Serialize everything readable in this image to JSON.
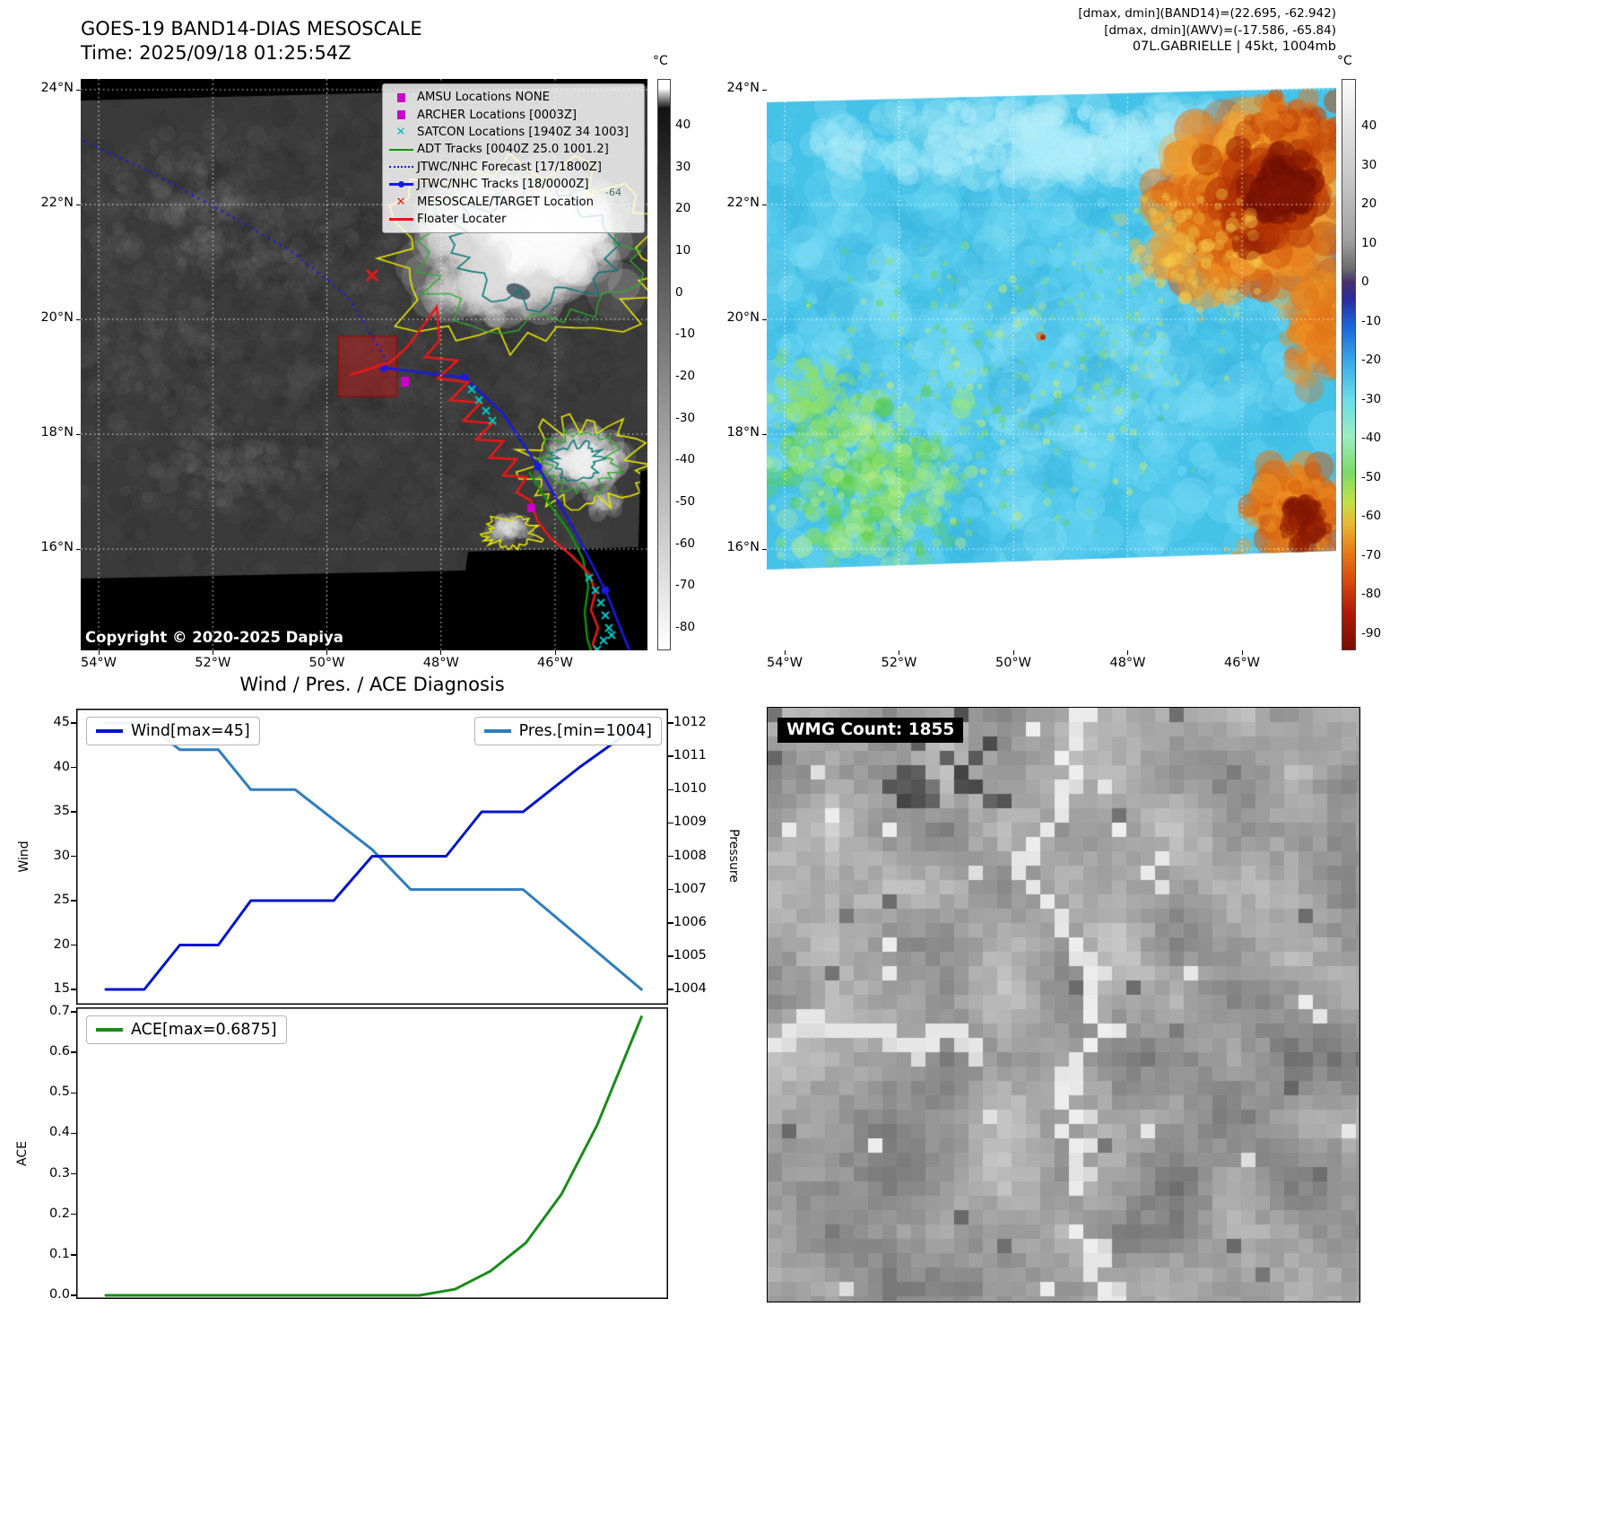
{
  "band14": {
    "title": "GOES-19 BAND14-DIAS MESOSCALE",
    "subtitle": "Time: 2025/09/18 01:25:54Z",
    "copyright": "Copyright © 2020-2025 Dapiya",
    "colorbar_unit": "°C",
    "colorbar_ticks": [
      "40",
      "30",
      "20",
      "10",
      "0",
      "-10",
      "-20",
      "-30",
      "-40",
      "-50",
      "-60",
      "-70",
      "-80"
    ],
    "lat_ticks": [
      "24°N",
      "22°N",
      "20°N",
      "18°N",
      "16°N"
    ],
    "lon_ticks": [
      "54°W",
      "52°W",
      "50°W",
      "48°W",
      "46°W"
    ],
    "contour_labels": [
      "-64",
      "-64"
    ],
    "legend": [
      {
        "type": "square",
        "color": "#cc00cc",
        "label": "AMSU Locations NONE"
      },
      {
        "type": "square",
        "color": "#cc00cc",
        "label": "ARCHER Locations [0003Z]"
      },
      {
        "type": "x",
        "color": "#00b9b9",
        "label": "SATCON Locations [1940Z 34 1003]"
      },
      {
        "type": "line",
        "color": "#0f930f",
        "label": "ADT Tracks [0040Z 25.0 1001.2]"
      },
      {
        "type": "dotted",
        "color": "#1a1ae0",
        "label": "JTWC/NHC Forecast [17/1800Z]"
      },
      {
        "type": "linedot",
        "color": "#1a1ae0",
        "label": "JTWC/NHC Tracks [18/0000Z]"
      },
      {
        "type": "x",
        "color": "#e51919",
        "label": "MESOSCALE/TARGET Location"
      },
      {
        "type": "line",
        "color": "#e51919",
        "label": "Floater Locater"
      }
    ]
  },
  "awv": {
    "header_lines": [
      "[dmax, dmin](BAND14)=(22.695, -62.942)",
      "[dmax, dmin](AWV)=(-17.586, -65.84)",
      "07L.GABRIELLE | 45kt, 1004mb"
    ],
    "colorbar_unit": "°C",
    "colorbar_ticks": [
      "40",
      "30",
      "20",
      "10",
      "0",
      "-10",
      "-20",
      "-30",
      "-40",
      "-50",
      "-60",
      "-70",
      "-80",
      "-90"
    ],
    "lat_ticks": [
      "24°N",
      "22°N",
      "20°N",
      "18°N",
      "16°N"
    ],
    "lon_ticks": [
      "54°W",
      "52°W",
      "50°W",
      "48°W",
      "46°W"
    ]
  },
  "diagnosis": {
    "title": "Wind / Pres. / ACE Diagnosis",
    "wind_axis_label": "Wind",
    "pressure_axis_label": "Pressure",
    "ace_axis_label": "ACE"
  },
  "wmg": {
    "label": "WMG Count: 1855"
  },
  "chart_data": [
    {
      "type": "line",
      "title": "Wind / Pres. / ACE Diagnosis",
      "ylabel": "Wind",
      "y2label": "Pressure",
      "ylim": [
        15,
        45
      ],
      "y2lim": [
        1004,
        1012
      ],
      "yticks": [
        "45",
        "40",
        "35",
        "30",
        "25",
        "20",
        "15"
      ],
      "y2ticks": [
        "1012",
        "1011",
        "1010",
        "1009",
        "1008",
        "1007",
        "1006",
        "1005",
        "1004"
      ],
      "legend_position": "top-inside",
      "grid": false,
      "series": [
        {
          "name": "Wind[max=45]",
          "axis": "left",
          "color": "#0015cc",
          "points": [
            [
              0.05,
              15
            ],
            [
              0.115,
              15
            ],
            [
              0.175,
              20
            ],
            [
              0.24,
              20
            ],
            [
              0.295,
              25
            ],
            [
              0.435,
              25
            ],
            [
              0.5,
              30
            ],
            [
              0.625,
              30
            ],
            [
              0.685,
              35
            ],
            [
              0.755,
              35
            ],
            [
              0.85,
              40
            ],
            [
              0.955,
              45
            ]
          ]
        },
        {
          "name": "Pres.[min=1004]",
          "axis": "right",
          "color": "#2e7ebc",
          "points": [
            [
              0.05,
              1012
            ],
            [
              0.115,
              1012
            ],
            [
              0.175,
              1011.2
            ],
            [
              0.24,
              1011.2
            ],
            [
              0.295,
              1010
            ],
            [
              0.37,
              1010
            ],
            [
              0.5,
              1008.2
            ],
            [
              0.565,
              1007
            ],
            [
              0.755,
              1007
            ],
            [
              0.955,
              1004
            ]
          ]
        }
      ]
    },
    {
      "type": "line",
      "ylabel": "ACE",
      "ylim": [
        0,
        0.7
      ],
      "yticks": [
        "0.7",
        "0.6",
        "0.5",
        "0.4",
        "0.3",
        "0.2",
        "0.1",
        "0.0"
      ],
      "legend_position": "top-inside",
      "grid": false,
      "series": [
        {
          "name": "ACE[max=0.6875]",
          "axis": "left",
          "color": "#1a8c1a",
          "points": [
            [
              0.05,
              0
            ],
            [
              0.58,
              0
            ],
            [
              0.64,
              0.015
            ],
            [
              0.7,
              0.06
            ],
            [
              0.76,
              0.13
            ],
            [
              0.82,
              0.25
            ],
            [
              0.88,
              0.42
            ],
            [
              0.955,
              0.6875
            ]
          ]
        }
      ]
    }
  ]
}
